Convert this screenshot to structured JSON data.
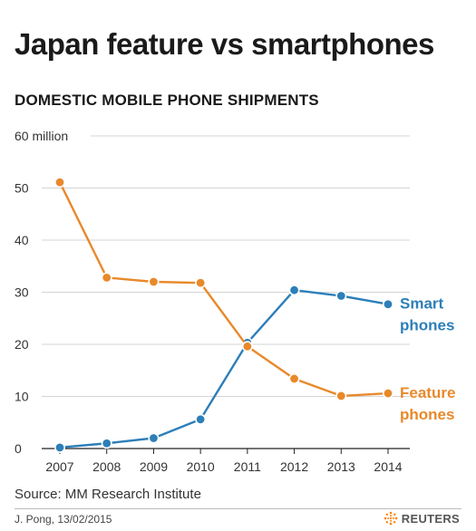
{
  "header": {
    "title": "Japan feature vs smartphones",
    "subtitle": "DOMESTIC MOBILE PHONE SHIPMENTS"
  },
  "footer": {
    "source": "Source: MM Research Institute",
    "credit": "J. Pong, 13/02/2015",
    "brand": "REUTERS",
    "brand_icon": "reuters-logo-icon"
  },
  "chart_data": {
    "type": "line",
    "title": "Japan feature vs smartphones",
    "subtitle": "DOMESTIC MOBILE PHONE SHIPMENTS",
    "x": [
      2007,
      2008,
      2009,
      2010,
      2011,
      2012,
      2013,
      2014
    ],
    "x_tick_labels": [
      "2007",
      "2008",
      "2009",
      "2010",
      "2011",
      "2012",
      "2013",
      "2014"
    ],
    "y_ticks": [
      0,
      10,
      20,
      30,
      40,
      50,
      60
    ],
    "y_tick_labels": [
      "0",
      "10",
      "20",
      "30",
      "40",
      "50",
      "60 million"
    ],
    "ylim": [
      0,
      60
    ],
    "grid": true,
    "series": [
      {
        "name_lines": [
          "Smart",
          "phones"
        ],
        "color": "#2d7fb8",
        "values": [
          0.2,
          1.0,
          2.0,
          5.6,
          20.3,
          30.4,
          29.3,
          27.7
        ]
      },
      {
        "name_lines": [
          "Feature",
          "phones"
        ],
        "color": "#e8892b",
        "values": [
          51.1,
          32.8,
          32.0,
          31.8,
          19.6,
          13.4,
          10.1,
          10.6
        ]
      }
    ],
    "legend": "inline-right"
  }
}
